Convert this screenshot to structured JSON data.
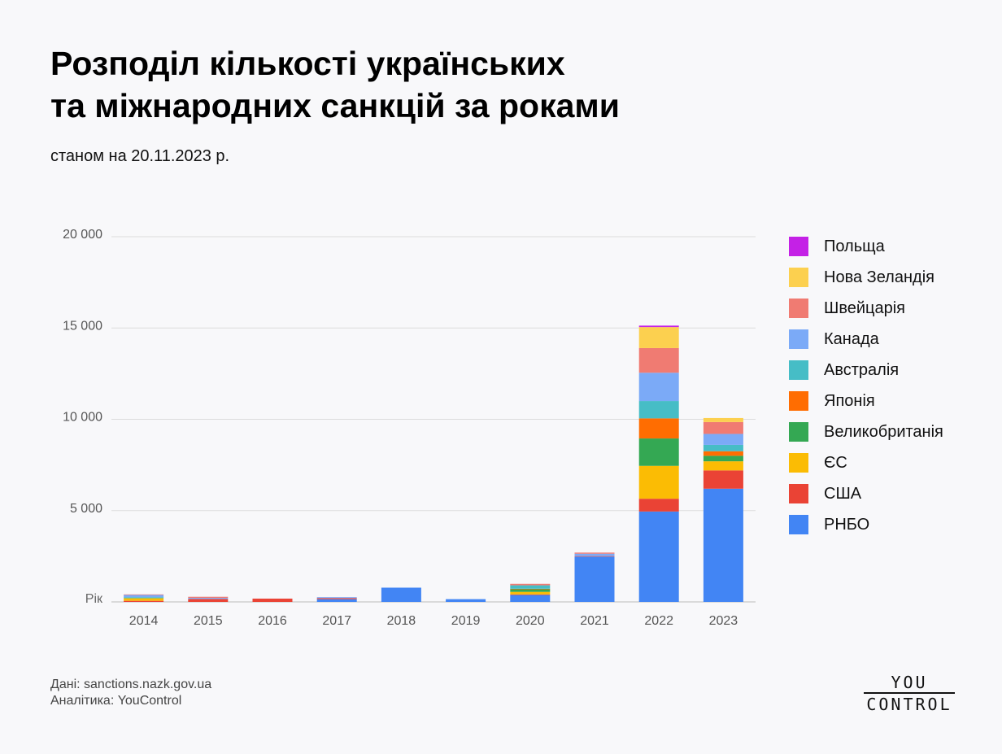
{
  "title_lines": [
    "Розподіл кількості українських",
    "та міжнародних санкцій за роками"
  ],
  "subtitle": "станом на 20.11.2023 р.",
  "source": {
    "line1": "Дані: sanctions.nazk.gov.ua",
    "line2": "Аналітика: YouControl"
  },
  "logo": {
    "top": "YOU",
    "bottom": "CONTROL"
  },
  "chart_data": {
    "type": "bar",
    "stacked": true,
    "x_axis_label": "Рік",
    "categories": [
      "2014",
      "2015",
      "2016",
      "2017",
      "2018",
      "2019",
      "2020",
      "2021",
      "2022",
      "2023"
    ],
    "ylim": [
      0,
      20000
    ],
    "yticks": [
      0,
      5000,
      10000,
      15000,
      20000
    ],
    "ytick_labels": [
      "",
      "5 000",
      "10 000",
      "15 000",
      "20 000"
    ],
    "grid": true,
    "legend_position": "right",
    "series": [
      {
        "name": "РНБО",
        "color": "#4285f4",
        "values": [
          0,
          0,
          0,
          150,
          780,
          150,
          380,
          2480,
          4950,
          6200
        ]
      },
      {
        "name": "США",
        "color": "#ea4335",
        "values": [
          60,
          160,
          180,
          60,
          0,
          0,
          30,
          30,
          700,
          1000
        ]
      },
      {
        "name": "ЄС",
        "color": "#fbbc04",
        "values": [
          140,
          0,
          0,
          0,
          0,
          0,
          140,
          0,
          1800,
          500
        ]
      },
      {
        "name": "Великобританія",
        "color": "#34a853",
        "values": [
          0,
          0,
          0,
          0,
          0,
          0,
          140,
          0,
          1500,
          300
        ]
      },
      {
        "name": "Японія",
        "color": "#ff6d01",
        "values": [
          0,
          0,
          0,
          0,
          0,
          0,
          30,
          0,
          1100,
          250
        ]
      },
      {
        "name": "Австралія",
        "color": "#46bdc6",
        "values": [
          60,
          0,
          0,
          0,
          0,
          0,
          190,
          0,
          950,
          350
        ]
      },
      {
        "name": "Канада",
        "color": "#7baaf7",
        "values": [
          120,
          60,
          0,
          50,
          0,
          0,
          0,
          130,
          1550,
          600
        ]
      },
      {
        "name": "Швейцарія",
        "color": "#f07b72",
        "values": [
          30,
          60,
          0,
          0,
          0,
          0,
          80,
          60,
          1350,
          650
        ]
      },
      {
        "name": "Нова Зеландія",
        "color": "#fcd04f",
        "values": [
          0,
          0,
          0,
          0,
          0,
          0,
          0,
          0,
          1150,
          220
        ]
      },
      {
        "name": "Польща",
        "color": "#c421e6",
        "values": [
          0,
          0,
          0,
          0,
          0,
          0,
          0,
          0,
          80,
          0
        ]
      }
    ]
  }
}
